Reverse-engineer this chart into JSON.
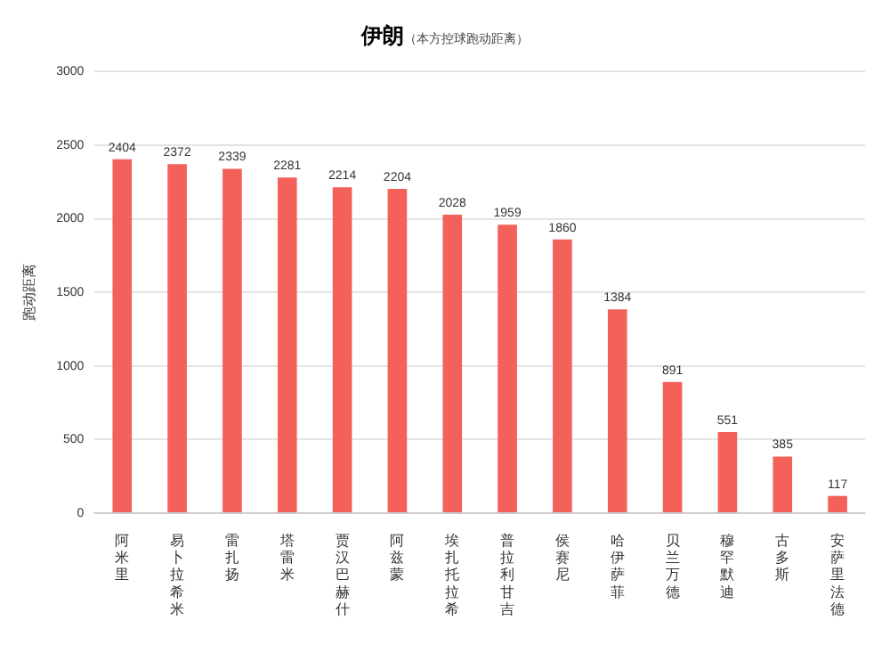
{
  "chart_data": {
    "type": "bar",
    "title": "伊朗",
    "subtitle": "（本方控球跑动距离）",
    "ylabel": "跑动距离",
    "categories": [
      "阿米里",
      "易卜拉希米",
      "雷扎扬",
      "塔雷米",
      "贾汉巴赫什",
      "阿兹蒙",
      "埃扎托拉希",
      "普拉利甘吉",
      "侯赛尼",
      "哈伊萨菲",
      "贝兰万德",
      "穆罕默迪",
      "古多斯",
      "安萨里法德"
    ],
    "values": [
      2404,
      2372,
      2339,
      2281,
      2214,
      2204,
      2028,
      1959,
      1860,
      1384,
      891,
      551,
      385,
      117
    ],
    "color": "#f4605a",
    "ylim": [
      0,
      3000
    ],
    "yticks": [
      0,
      500,
      1000,
      1500,
      2000,
      2500,
      3000
    ],
    "grid": "y",
    "data_labels": true,
    "legend": false
  }
}
